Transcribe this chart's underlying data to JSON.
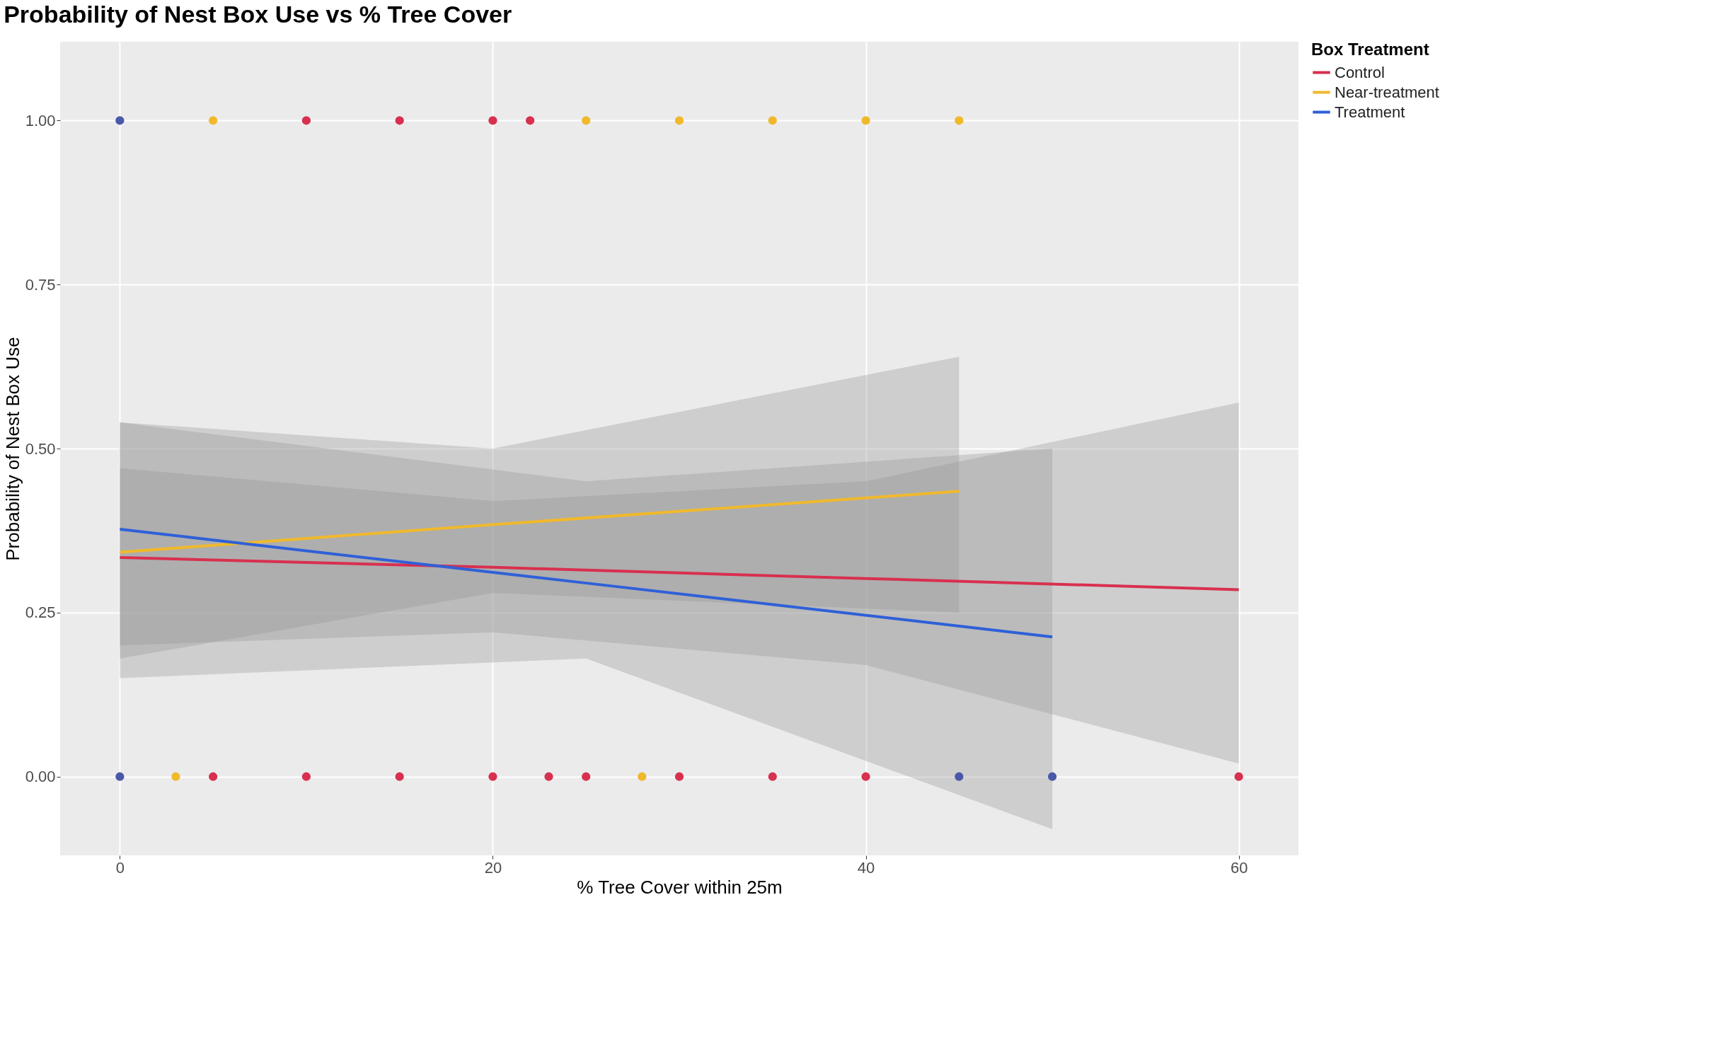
{
  "chart_data": {
    "type": "line",
    "title": "Probability of Nest Box Use vs % Tree Cover",
    "xlabel": "% Tree Cover within 25m",
    "ylabel": "Probability of Nest Box Use",
    "legend_title": "Box Treatment",
    "xlim": [
      -3.2,
      63.2
    ],
    "ylim": [
      -0.12,
      1.12
    ],
    "xticks": [
      0,
      20,
      40,
      60
    ],
    "yticks": [
      {
        "value": 0,
        "label": "0.00"
      },
      {
        "value": 0.25,
        "label": "0.25"
      },
      {
        "value": 0.5,
        "label": "0.50"
      },
      {
        "value": 0.75,
        "label": "0.75"
      },
      {
        "value": 1,
        "label": "1.00"
      }
    ],
    "grid": true,
    "legend": "right",
    "series": [
      {
        "name": "Control",
        "type": "line",
        "color": "#d8304f",
        "x": [
          0,
          20,
          40,
          60
        ],
        "values": [
          0.334,
          0.319,
          0.302,
          0.285
        ],
        "lower": [
          0.2,
          0.22,
          0.17,
          0.02
        ],
        "upper": [
          0.47,
          0.42,
          0.45,
          0.57
        ]
      },
      {
        "name": "Near-treatment",
        "type": "line",
        "color": "#f0b92c",
        "x": [
          0,
          20,
          45
        ],
        "values": [
          0.342,
          0.384,
          0.435
        ],
        "lower": [
          0.18,
          0.28,
          0.25
        ],
        "upper": [
          0.54,
          0.5,
          0.64
        ]
      },
      {
        "name": "Treatment",
        "type": "line",
        "color": "#2f60d8",
        "x": [
          0,
          25,
          50
        ],
        "values": [
          0.377,
          0.295,
          0.213
        ],
        "lower": [
          0.15,
          0.18,
          -0.08
        ],
        "upper": [
          0.54,
          0.45,
          0.5
        ]
      },
      {
        "type": "scatter",
        "color": "#d8304f",
        "x": [
          10,
          15,
          20,
          22,
          5,
          10,
          15,
          20,
          23,
          25,
          30,
          35,
          40,
          60
        ],
        "values": [
          1,
          1,
          1,
          1,
          0,
          0,
          0,
          0,
          0,
          0,
          0,
          0,
          0,
          0
        ]
      },
      {
        "type": "scatter",
        "color": "#f0b92c",
        "x": [
          5,
          25,
          30,
          35,
          40,
          45,
          3,
          28
        ],
        "values": [
          1,
          1,
          1,
          1,
          1,
          1,
          0,
          0
        ]
      },
      {
        "type": "scatter",
        "color": "#4a58a8",
        "x": [
          0,
          0,
          45,
          50
        ],
        "values": [
          1,
          0,
          0,
          0
        ]
      }
    ]
  }
}
